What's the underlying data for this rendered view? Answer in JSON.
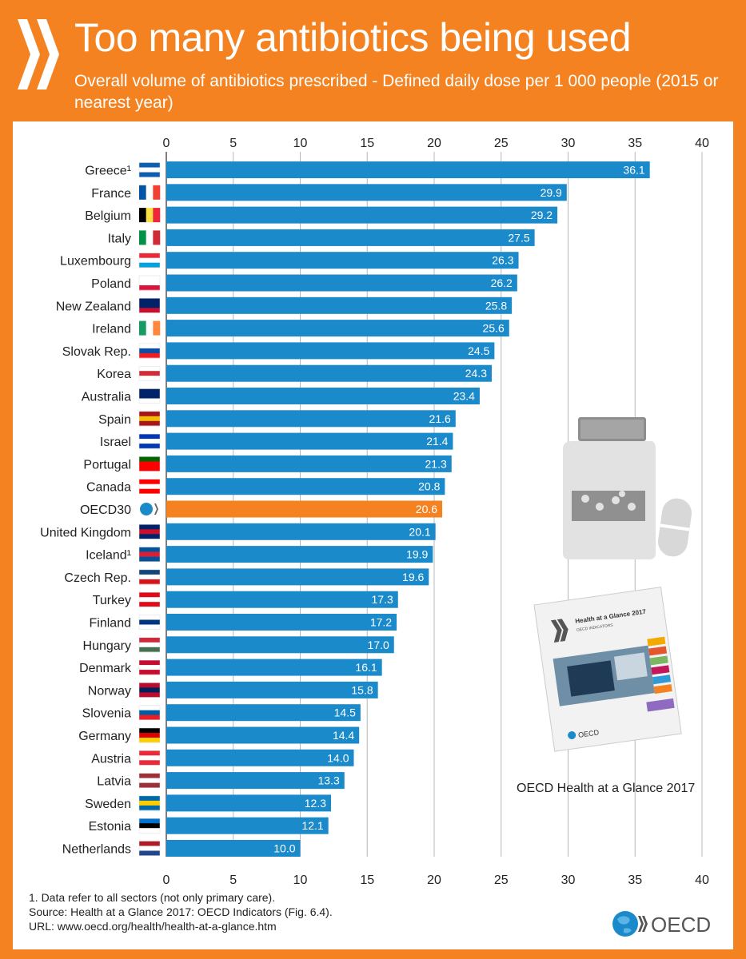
{
  "header": {
    "title": "Too many antibiotics being used",
    "subtitle": "Overall volume of antibiotics prescribed - Defined daily dose per 1 000 people (2015 or nearest year)"
  },
  "chart_data": {
    "type": "bar",
    "orientation": "horizontal",
    "categories": [
      "Greece¹",
      "France",
      "Belgium",
      "Italy",
      "Luxembourg",
      "Poland",
      "New Zealand",
      "Ireland",
      "Slovak Rep.",
      "Korea",
      "Australia",
      "Spain",
      "Israel",
      "Portugal",
      "Canada",
      "OECD30",
      "United Kingdom",
      "Iceland¹",
      "Czech Rep.",
      "Turkey",
      "Finland",
      "Hungary",
      "Denmark",
      "Norway",
      "Slovenia",
      "Germany",
      "Austria",
      "Latvia",
      "Sweden",
      "Estonia",
      "Netherlands"
    ],
    "values": [
      36.1,
      29.9,
      29.2,
      27.5,
      26.3,
      26.2,
      25.8,
      25.6,
      24.5,
      24.3,
      23.4,
      21.6,
      21.4,
      21.3,
      20.8,
      20.6,
      20.1,
      19.9,
      19.6,
      17.3,
      17.2,
      17.0,
      16.1,
      15.8,
      14.5,
      14.4,
      14.0,
      13.3,
      12.3,
      12.1,
      10.0
    ],
    "value_labels": [
      "36.1",
      "29.9",
      "29.2",
      "27.5",
      "26.3",
      "26.2",
      "25.8",
      "25.6",
      "24.5",
      "24.3",
      "23.4",
      "21.6",
      "21.4",
      "21.3",
      "20.8",
      "20.6",
      "20.1",
      "19.9",
      "19.6",
      "17.3",
      "17.2",
      "17.0",
      "16.1",
      "15.8",
      "14.5",
      "14.4",
      "14.0",
      "13.3",
      "12.3",
      "12.1",
      "10.0"
    ],
    "highlight_category": "OECD30",
    "xlim": [
      0,
      40
    ],
    "ticks": [
      "0",
      "5",
      "10",
      "15",
      "20",
      "25",
      "30",
      "35",
      "40"
    ],
    "tick_values": [
      0,
      5,
      10,
      15,
      20,
      25,
      30,
      35,
      40
    ],
    "grid": true,
    "axis_position": "top and bottom",
    "colors": {
      "bar": "#1B8ACB",
      "highlight": "#F58220",
      "grid": "#B8B8B8"
    }
  },
  "footnotes": {
    "note": "1. Data refer to all sectors (not only primary care).",
    "source": "Source: Health at a Glance 2017: OECD Indicators (Fig. 6.4).",
    "url": "URL: www.oecd.org/health/health-at-a-glance.htm"
  },
  "book": {
    "caption": "OECD Health at a Glance 2017",
    "cover_title": "Health at a Glance 2017",
    "cover_subtitle": "OECD INDICATORS",
    "cover_logo": "OECD"
  },
  "logo": {
    "text": "OECD"
  },
  "icons": {
    "flags": "country-flag-icons",
    "pill_bottle": "pill-bottle-icon",
    "capsule": "capsule-icon"
  }
}
